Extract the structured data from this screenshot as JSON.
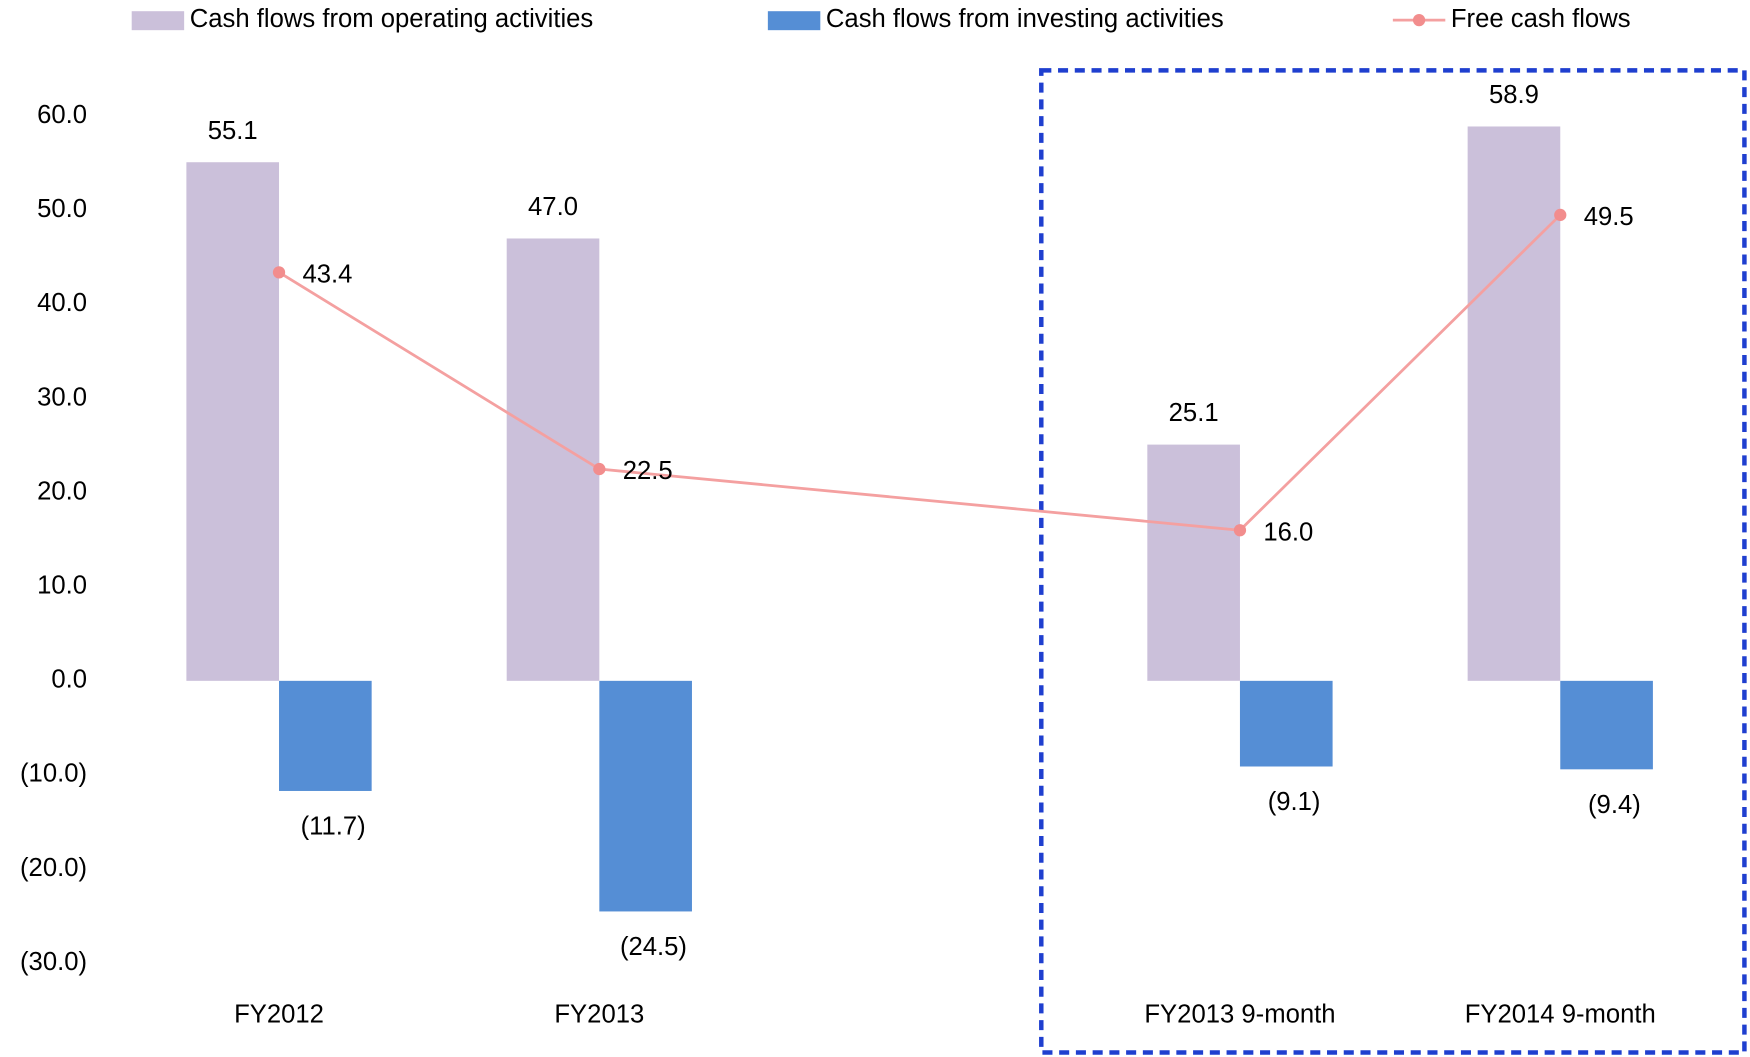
{
  "chart_data": {
    "type": "bar",
    "categories": [
      "FY2012",
      "FY2013",
      null,
      "FY2013 9-month",
      "FY2014 9-month"
    ],
    "series": [
      {
        "name": "Cash flows from operating activities",
        "type": "bar",
        "color": "#cbc0da",
        "values": [
          55.1,
          47.0,
          null,
          25.1,
          58.9
        ],
        "value_labels": [
          "55.1",
          "47.0",
          null,
          "25.1",
          "58.9"
        ]
      },
      {
        "name": "Cash flows from investing activities",
        "type": "bar",
        "color": "#558ed5",
        "values": [
          -11.7,
          -24.5,
          null,
          -9.1,
          -9.4
        ],
        "value_labels": [
          "(11.7)",
          "(24.5)",
          null,
          "(9.1)",
          "(9.4)"
        ]
      },
      {
        "name": "Free cash flows",
        "type": "line",
        "color": "#f4a0a0",
        "values": [
          43.4,
          22.5,
          null,
          16.0,
          49.5
        ],
        "value_labels": [
          "43.4",
          "22.5",
          null,
          "16.0",
          "49.5"
        ]
      }
    ],
    "ylim": [
      -30,
      60
    ],
    "yticks": [
      {
        "value": -30,
        "label": "(30.0)"
      },
      {
        "value": -20,
        "label": "(20.0)"
      },
      {
        "value": -10,
        "label": "(10.0)"
      },
      {
        "value": 0,
        "label": "0.0"
      },
      {
        "value": 10,
        "label": "10.0"
      },
      {
        "value": 20,
        "label": "20.0"
      },
      {
        "value": 30,
        "label": "30.0"
      },
      {
        "value": 40,
        "label": "40.0"
      },
      {
        "value": 50,
        "label": "50.0"
      },
      {
        "value": 60,
        "label": "60.0"
      }
    ],
    "grid": false,
    "legend": "top"
  }
}
